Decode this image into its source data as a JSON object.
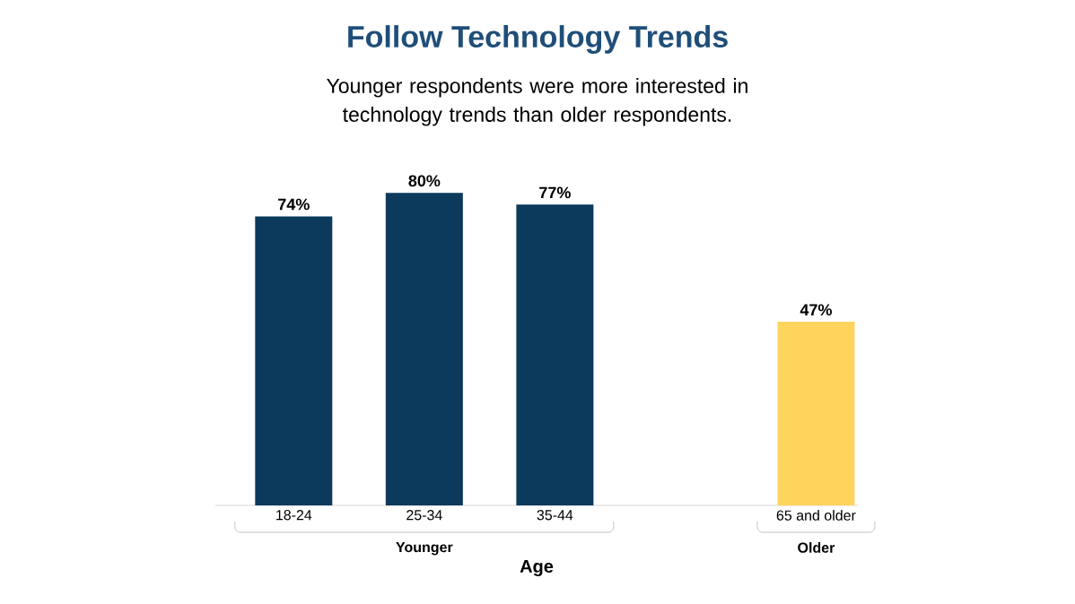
{
  "chart_data": {
    "type": "bar",
    "title": "Follow Technology Trends",
    "subtitle": "Younger respondents were more interested in technology trends than older respondents.",
    "xlabel": "Age",
    "categories": [
      "18-24",
      "25-34",
      "35-44",
      null,
      "65 and older"
    ],
    "values": [
      74,
      80,
      77,
      null,
      47
    ],
    "colors": [
      "#0b3a5c",
      "#0b3a5c",
      "#0b3a5c",
      null,
      "#ffd45c"
    ],
    "value_labels": [
      "74%",
      "80%",
      "77%",
      null,
      "47%"
    ],
    "tick_labels": "x",
    "annotations": [
      "Younger",
      "Older"
    ]
  }
}
